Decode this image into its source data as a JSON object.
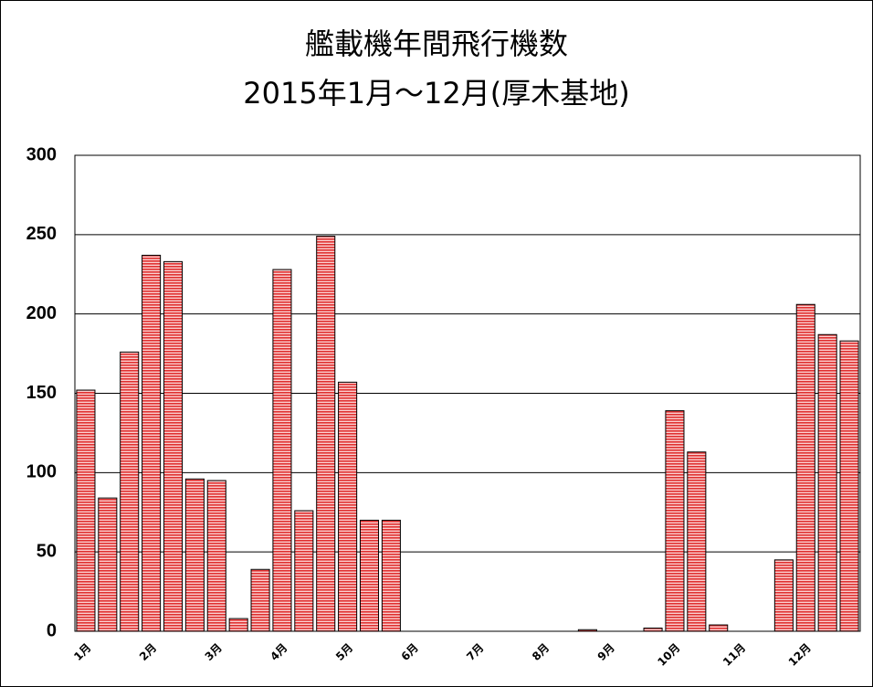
{
  "chart_data": {
    "type": "bar",
    "title": "艦載機年間飛行機数",
    "subtitle": "2015年1月～12月(厚木基地)",
    "categories": [
      "1月",
      null,
      null,
      "2月",
      null,
      null,
      "3月",
      null,
      null,
      "4月",
      null,
      null,
      "5月",
      null,
      null,
      "6月",
      null,
      null,
      "7月",
      null,
      null,
      "8月",
      null,
      null,
      "9月",
      null,
      null,
      "10月",
      null,
      null,
      "11月",
      null,
      null,
      "12月",
      null,
      null
    ],
    "values": [
      152,
      84,
      176,
      237,
      233,
      96,
      95,
      8,
      39,
      228,
      76,
      249,
      157,
      70,
      70,
      0,
      0,
      0,
      0,
      0,
      0,
      0,
      0,
      1,
      0,
      0,
      2,
      139,
      113,
      4,
      0,
      0,
      45,
      206,
      187,
      183
    ],
    "color": "#e03030",
    "ylim": [
      0,
      300
    ],
    "yticks": [
      0,
      50,
      100,
      150,
      200,
      250,
      300
    ],
    "grid": true
  }
}
